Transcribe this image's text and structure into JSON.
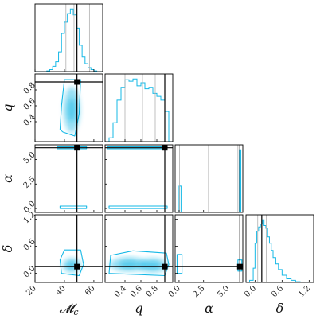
{
  "chart_data": {
    "type": "corner",
    "colors": {
      "samples": "#14b8e6",
      "truth": "#000000",
      "quantile": "#b0b0b0",
      "frame": "#000000"
    },
    "parameters": [
      {
        "key": "mc",
        "label": "M_c",
        "label_display": "𝓜",
        "label_sub": "c",
        "range": [
          20,
          66
        ],
        "ticks": [
          20,
          40,
          60
        ],
        "tick_labels": [
          "20",
          "40",
          "60"
        ],
        "truth": 48.5,
        "quantiles": [
          41,
          46.5,
          57
        ]
      },
      {
        "key": "q",
        "label": "q",
        "label_display": "q",
        "range": [
          0.15,
          1.0
        ],
        "ticks": [
          0.4,
          0.6,
          0.8
        ],
        "tick_labels": [
          "0.4",
          "0.6",
          "0.8"
        ],
        "truth": 0.9,
        "quantiles": [
          0.4,
          0.62,
          0.78
        ]
      },
      {
        "key": "alpha",
        "label": "α",
        "label_display": "α",
        "range": [
          -0.4,
          6.5
        ],
        "ticks": [
          0.0,
          2.5,
          5.0
        ],
        "tick_labels": [
          "0.0",
          "2.5",
          "5.0"
        ],
        "truth": 6.2,
        "quantiles": [
          0.05,
          3.0,
          6.0
        ]
      },
      {
        "key": "delta",
        "label": "δ",
        "label_display": "δ",
        "range": [
          -0.2,
          1.3
        ],
        "ticks": [
          0.0,
          0.6,
          1.2
        ],
        "tick_labels": [
          "0.0",
          "0.6",
          "1.2"
        ],
        "truth": 0.15,
        "quantiles": [
          0.06,
          0.25,
          0.62
        ]
      }
    ],
    "marginals": [
      {
        "param": "mc",
        "bins": [
          20,
          22,
          24,
          26,
          28,
          30,
          32,
          34,
          36,
          38,
          40,
          42,
          44,
          46,
          48,
          50,
          52,
          54,
          56,
          58,
          60,
          62,
          64,
          66
        ],
        "counts": [
          0,
          0,
          0,
          0,
          1,
          3,
          8,
          15,
          30,
          58,
          75,
          88,
          95,
          86,
          66,
          40,
          22,
          12,
          6,
          3,
          1,
          0,
          0
        ]
      },
      {
        "param": "q",
        "bins": [
          0.15,
          0.2,
          0.25,
          0.3,
          0.35,
          0.4,
          0.45,
          0.5,
          0.55,
          0.6,
          0.65,
          0.7,
          0.75,
          0.8,
          0.85,
          0.9,
          0.95,
          1.0
        ],
        "counts": [
          0,
          5,
          25,
          55,
          72,
          82,
          80,
          83,
          74,
          78,
          70,
          72,
          64,
          60,
          55,
          40,
          0
        ]
      },
      {
        "param": "alpha",
        "bins": [
          -0.4,
          0.0,
          0.2,
          0.4,
          6.0,
          6.15,
          6.3,
          6.5
        ],
        "counts": [
          0,
          40,
          0,
          0,
          0,
          95,
          0
        ]
      },
      {
        "param": "delta",
        "bins": [
          -0.2,
          -0.12,
          -0.04,
          0.0,
          0.04,
          0.08,
          0.12,
          0.16,
          0.2,
          0.24,
          0.28,
          0.32,
          0.36,
          0.4,
          0.46,
          0.52,
          0.6,
          0.7,
          0.8,
          0.9,
          1.0,
          1.1,
          1.3
        ],
        "counts": [
          0,
          3,
          20,
          55,
          72,
          78,
          82,
          88,
          80,
          76,
          64,
          55,
          45,
          35,
          26,
          18,
          10,
          5,
          3,
          1,
          0,
          0
        ]
      }
    ],
    "joint_regions": [
      {
        "x": "mc",
        "y": "q",
        "centers": [
          {
            "x": 45,
            "y": 0.55,
            "sx": 3.5,
            "sy": 0.18
          }
        ],
        "contour": [
          [
            39,
            0.27
          ],
          [
            47,
            0.22
          ],
          [
            50,
            0.5
          ],
          [
            51,
            0.93
          ],
          [
            40,
            0.93
          ],
          [
            38,
            0.6
          ],
          [
            37,
            0.3
          ]
        ]
      },
      {
        "x": "mc",
        "y": "alpha",
        "centers": [],
        "contours": [
          [
            [
              35,
              6.1
            ],
            [
              55,
              6.1
            ],
            [
              55,
              6.3
            ],
            [
              35,
              6.3
            ]
          ],
          [
            [
              37,
              0.0
            ],
            [
              55,
              0.0
            ],
            [
              55,
              0.25
            ],
            [
              37,
              0.25
            ]
          ]
        ]
      },
      {
        "x": "q",
        "y": "alpha",
        "centers": [],
        "contours": [
          [
            [
              0.18,
              6.1
            ],
            [
              0.93,
              6.1
            ],
            [
              0.93,
              6.3
            ],
            [
              0.18,
              6.3
            ]
          ],
          [
            [
              0.2,
              0.0
            ],
            [
              0.93,
              0.0
            ],
            [
              0.93,
              0.25
            ],
            [
              0.2,
              0.25
            ]
          ]
        ]
      },
      {
        "x": "mc",
        "y": "delta",
        "centers": [
          {
            "x": 45,
            "y": 0.18,
            "sx": 4,
            "sy": 0.1
          }
        ],
        "contour": [
          [
            38,
            0.0
          ],
          [
            50,
            -0.05
          ],
          [
            53,
            0.2
          ],
          [
            51,
            0.52
          ],
          [
            40,
            0.52
          ],
          [
            37,
            0.3
          ]
        ]
      },
      {
        "x": "q",
        "y": "delta",
        "centers": [
          {
            "x": 0.45,
            "y": 0.2,
            "sx": 0.15,
            "sy": 0.1
          },
          {
            "x": 0.75,
            "y": 0.18,
            "sx": 0.12,
            "sy": 0.1
          }
        ],
        "contour": [
          [
            0.2,
            0.0
          ],
          [
            0.9,
            -0.05
          ],
          [
            0.95,
            0.2
          ],
          [
            0.92,
            0.45
          ],
          [
            0.5,
            0.5
          ],
          [
            0.22,
            0.4
          ]
        ]
      },
      {
        "x": "alpha",
        "y": "delta",
        "centers": [],
        "contours": [
          [
            [
              -0.2,
              0.0
            ],
            [
              0.3,
              0.0
            ],
            [
              0.3,
              0.42
            ],
            [
              -0.2,
              0.42
            ]
          ],
          [
            [
              6.0,
              0.05
            ],
            [
              6.4,
              0.05
            ],
            [
              6.4,
              0.3
            ],
            [
              6.0,
              0.3
            ]
          ]
        ]
      }
    ]
  }
}
